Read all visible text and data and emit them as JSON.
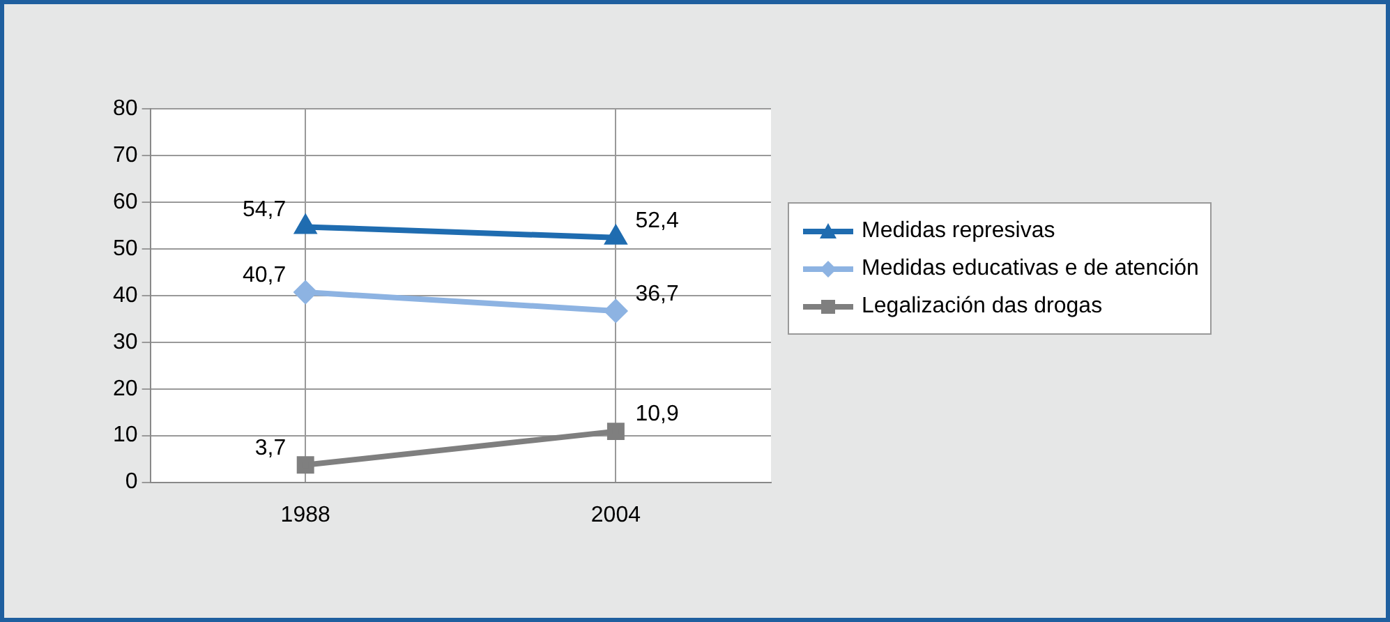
{
  "chart_data": {
    "type": "line",
    "categories": [
      "1988",
      "2004"
    ],
    "series": [
      {
        "name": "Medidas represivas",
        "color": "#1f6cb0",
        "values": [
          54.7,
          52.4
        ],
        "value_labels": [
          "54,7",
          "52,4"
        ],
        "marker": "triangle"
      },
      {
        "name": "Medidas educativas e de atención",
        "color": "#8db3e2",
        "values": [
          40.7,
          36.7
        ],
        "value_labels": [
          "40,7",
          "36,7"
        ],
        "marker": "diamond"
      },
      {
        "name": "Legalización das drogas",
        "color": "#7f7f7f",
        "values": [
          3.7,
          10.9
        ],
        "value_labels": [
          "3,7",
          "10,9"
        ],
        "marker": "square"
      }
    ],
    "ylim": [
      0,
      80
    ],
    "yticks": [
      0,
      10,
      20,
      30,
      40,
      50,
      60,
      70,
      80
    ],
    "grid": true,
    "legend": "right",
    "line_style": "solid"
  }
}
